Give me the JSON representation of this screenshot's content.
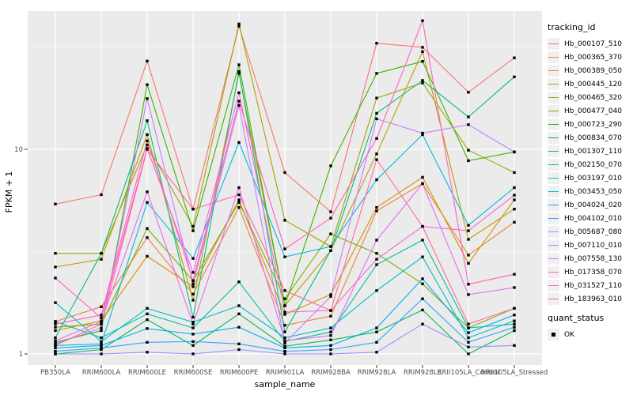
{
  "figure": {
    "background": "#FFFFFF",
    "panel_bg": "#EBEBEB",
    "grid_color": "#FFFFFF",
    "point_color": "#000000",
    "tick_text_color": "#4D4D4D",
    "axis_title_color": "#000000"
  },
  "chart_data": {
    "type": "line",
    "title": "",
    "xlabel": "sample_name",
    "ylabel": "FPKM + 1",
    "y_scale": "log10",
    "y_tick_labels": [
      "1",
      "10"
    ],
    "y_ticks": [
      1,
      10
    ],
    "y_minor_ticks": [
      3.162,
      31.62
    ],
    "ylim": [
      0.74,
      47.4
    ],
    "grid": true,
    "legend_position": "right",
    "legend_title": "tracking_id",
    "legend2_title": "quant_status",
    "legend2_items": [
      {
        "label": "OK",
        "marker": "square",
        "color": "#000000"
      }
    ],
    "marker": "square",
    "categories": [
      "PB350LA",
      "RRIM600LA",
      "RRIM600LE",
      "RRIM600SE",
      "RRIM600PE",
      "RRIM901LA",
      "RRIM928BA",
      "RRIM928LA",
      "RRIM928LE",
      "RRII105LA_Control",
      "RRII105LA_Stressed"
    ],
    "series": [
      {
        "name": "Hb_000107_510",
        "color": "#F8766D",
        "values": [
          5.4,
          6.0,
          27.0,
          5.1,
          40.0,
          7.7,
          4.95,
          33.0,
          31.5,
          19.0,
          28.0
        ]
      },
      {
        "name": "Hb_000365_370",
        "color": "#EA8331",
        "values": [
          1.44,
          1.7,
          3.7,
          1.96,
          5.2,
          1.38,
          1.53,
          5.0,
          6.8,
          3.04,
          4.4
        ]
      },
      {
        "name": "Hb_000389_050",
        "color": "#D89000",
        "values": [
          1.3,
          1.45,
          3.0,
          2.13,
          5.66,
          1.56,
          1.95,
          5.2,
          7.3,
          2.77,
          5.66
        ]
      },
      {
        "name": "Hb_000445_120",
        "color": "#C09B00",
        "values": [
          2.66,
          2.9,
          11.8,
          1.83,
          23.5,
          1.72,
          3.2,
          9.5,
          30.0,
          3.63,
          5.1
        ]
      },
      {
        "name": "Hb_000465_320",
        "color": "#A3A500",
        "values": [
          3.1,
          3.1,
          10.5,
          4.2,
          41.0,
          4.5,
          3.35,
          17.8,
          21.1,
          9.9,
          7.7
        ]
      },
      {
        "name": "Hb_000477_040",
        "color": "#7CAE00",
        "values": [
          1.35,
          1.4,
          4.1,
          2.28,
          5.5,
          1.86,
          3.86,
          3.1,
          2.2,
          1.34,
          1.67
        ]
      },
      {
        "name": "Hb_000723_290",
        "color": "#39B600",
        "values": [
          1.14,
          1.3,
          20.7,
          4.0,
          25.9,
          1.72,
          8.3,
          23.5,
          26.9,
          8.8,
          9.7
        ]
      },
      {
        "name": "Hb_000834_070",
        "color": "#00BB4E",
        "values": [
          1.0,
          1.05,
          1.47,
          1.1,
          1.57,
          1.09,
          1.17,
          1.28,
          1.64,
          1.0,
          1.3
        ]
      },
      {
        "name": "Hb_001307_110",
        "color": "#00BF7D",
        "values": [
          1.2,
          3.1,
          13.8,
          1.51,
          24.0,
          1.28,
          3.2,
          15.0,
          21.7,
          14.4,
          22.6
        ]
      },
      {
        "name": "Hb_002150_070",
        "color": "#00C1A3",
        "values": [
          1.44,
          1.2,
          1.57,
          1.34,
          2.25,
          1.15,
          1.28,
          2.73,
          3.6,
          1.34,
          1.4
        ]
      },
      {
        "name": "Hb_003197_010",
        "color": "#00BFC4",
        "values": [
          1.78,
          1.15,
          1.67,
          1.43,
          1.72,
          1.2,
          1.34,
          2.04,
          2.98,
          1.2,
          1.45
        ]
      },
      {
        "name": "Hb_003453_050",
        "color": "#00BAE0",
        "values": [
          1.1,
          1.12,
          5.5,
          2.93,
          10.8,
          2.98,
          3.35,
          7.1,
          11.8,
          4.25,
          6.5
        ]
      },
      {
        "name": "Hb_004024_020",
        "color": "#00B0F6",
        "values": [
          1.07,
          1.1,
          1.33,
          1.25,
          1.35,
          1.07,
          1.1,
          1.34,
          2.33,
          1.27,
          1.55
        ]
      },
      {
        "name": "Hb_004102_010",
        "color": "#35A2FF",
        "values": [
          1.03,
          1.07,
          1.14,
          1.15,
          1.12,
          1.03,
          1.05,
          1.14,
          1.86,
          1.14,
          1.35
        ]
      },
      {
        "name": "Hb_005687_080",
        "color": "#9590FF",
        "values": [
          1.0,
          1.0,
          1.02,
          1.0,
          1.05,
          1.0,
          1.0,
          1.02,
          1.4,
          1.08,
          1.1
        ]
      },
      {
        "name": "Hb_007110_010",
        "color": "#C77CFF",
        "values": [
          1.12,
          1.34,
          17.7,
          2.2,
          16.4,
          1.13,
          1.91,
          14.1,
          12.0,
          13.2,
          9.7
        ]
      },
      {
        "name": "Hb_007558_130",
        "color": "#E76BF3",
        "values": [
          1.16,
          1.44,
          6.2,
          1.4,
          6.5,
          1.16,
          1.23,
          3.6,
          6.8,
          1.95,
          2.11
        ]
      },
      {
        "name": "Hb_017358_070",
        "color": "#FA62DB",
        "values": [
          2.35,
          1.5,
          10.1,
          2.5,
          18.9,
          1.6,
          1.63,
          2.9,
          4.2,
          4.0,
          5.97
        ]
      },
      {
        "name": "Hb_031527_110",
        "color": "#FF62BC",
        "values": [
          1.4,
          1.55,
          11.0,
          2.28,
          17.2,
          3.26,
          4.61,
          11.3,
          42.5,
          2.19,
          2.45
        ]
      },
      {
        "name": "Hb_183963_010",
        "color": "#FF6A98",
        "values": [
          1.1,
          1.4,
          10.0,
          5.1,
          6.0,
          2.04,
          1.63,
          8.9,
          4.2,
          1.4,
          1.67
        ]
      }
    ]
  }
}
